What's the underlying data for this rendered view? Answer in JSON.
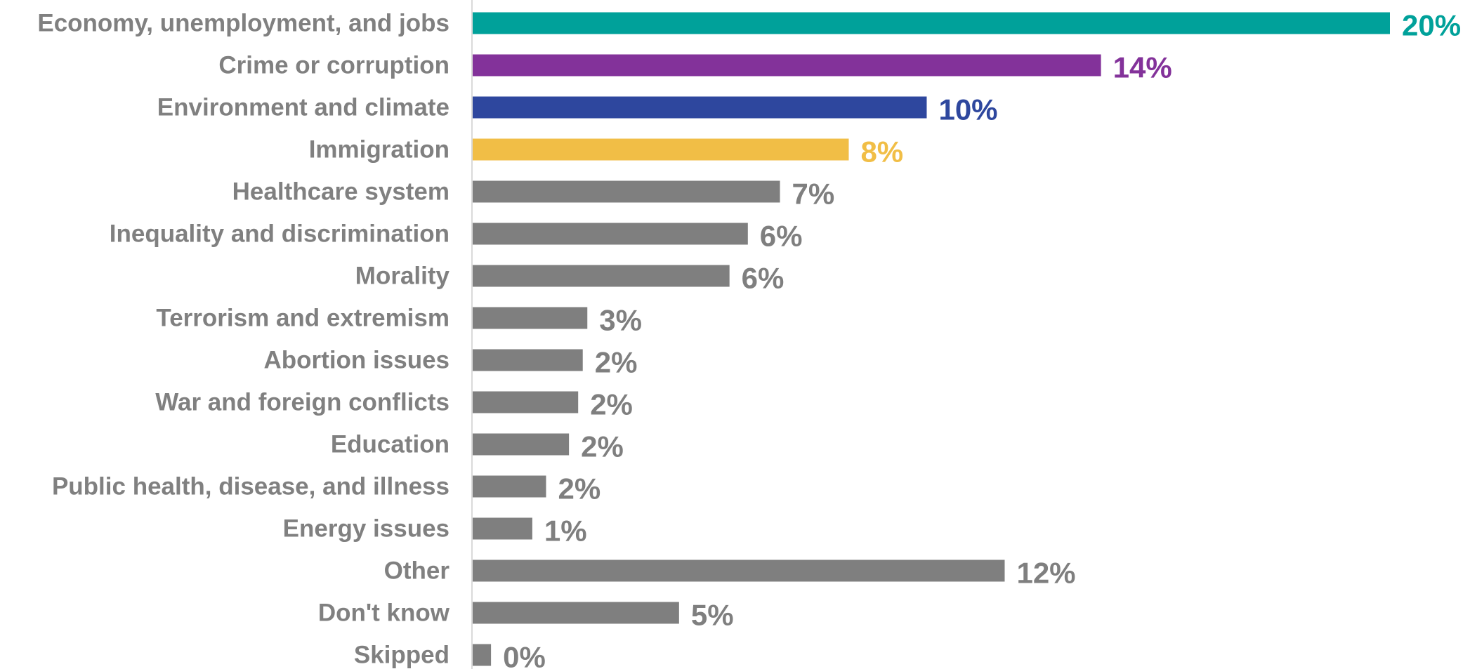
{
  "chart_data": {
    "type": "bar",
    "orientation": "horizontal",
    "categories": [
      "Economy, unemployment, and jobs",
      "Crime or corruption",
      "Environment and climate",
      "Immigration",
      "Healthcare system",
      "Inequality and discrimination",
      "Morality",
      "Terrorism and extremism",
      "Abortion issues",
      "War and foreign conflicts",
      "Education",
      "Public health, disease, and illness",
      "Energy issues",
      "Other",
      "Don't know",
      "Skipped"
    ],
    "values": [
      20.0,
      13.7,
      9.9,
      8.2,
      6.7,
      6.0,
      5.6,
      2.5,
      2.4,
      2.3,
      2.1,
      1.6,
      1.3,
      11.6,
      4.5,
      0.4
    ],
    "value_labels": [
      "20%",
      "14%",
      "10%",
      "8%",
      "7%",
      "6%",
      "6%",
      "3%",
      "2%",
      "2%",
      "2%",
      "2%",
      "1%",
      "12%",
      "5%",
      "0%"
    ],
    "colors": [
      "#00A19A",
      "#83329A",
      "#2E479E",
      "#F1BE46",
      "#7F7F7F",
      "#7F7F7F",
      "#7F7F7F",
      "#7F7F7F",
      "#7F7F7F",
      "#7F7F7F",
      "#7F7F7F",
      "#7F7F7F",
      "#7F7F7F",
      "#7F7F7F",
      "#7F7F7F",
      "#7F7F7F"
    ],
    "xlim": [
      0,
      20
    ],
    "grid": false,
    "legend": "none",
    "title": "",
    "xlabel": "",
    "ylabel": ""
  }
}
